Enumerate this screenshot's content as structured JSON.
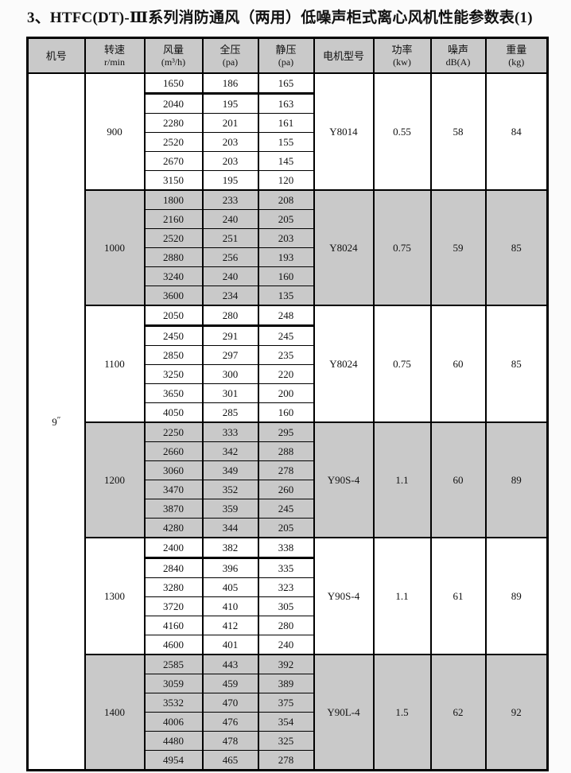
{
  "page": {
    "title": "3、HTFC(DT)-Ⅲ系列消防通风（两用）低噪声柜式离心风机性能参数表(1)"
  },
  "colors": {
    "shade_gray": "#c9c9c9",
    "border": "#000000",
    "background": "#fbfbfb"
  },
  "table": {
    "machine_no": "9″",
    "headers": [
      {
        "line1": "机号",
        "line2": ""
      },
      {
        "line1": "转速",
        "line2": "r/min"
      },
      {
        "line1": "风量",
        "line2": "(m³/h)"
      },
      {
        "line1": "全压",
        "line2": "(pa)"
      },
      {
        "line1": "静压",
        "line2": "(pa)"
      },
      {
        "line1": "电机型号",
        "line2": ""
      },
      {
        "line1": "功率",
        "line2": "(kw)"
      },
      {
        "line1": "噪声",
        "line2": "dB(A)"
      },
      {
        "line1": "重量",
        "line2": "(kg)"
      }
    ],
    "sections": [
      {
        "speed": "900",
        "motor": "Y8014",
        "power": "0.55",
        "noise": "58",
        "weight": "84",
        "shaded": false,
        "divider_after_first_row": true,
        "rows": [
          [
            1650,
            186,
            165
          ],
          [
            2040,
            195,
            163
          ],
          [
            2280,
            201,
            161
          ],
          [
            2520,
            203,
            155
          ],
          [
            2670,
            203,
            145
          ],
          [
            3150,
            195,
            120
          ]
        ]
      },
      {
        "speed": "1000",
        "motor": "Y8024",
        "power": "0.75",
        "noise": "59",
        "weight": "85",
        "shaded": true,
        "divider_after_first_row": false,
        "rows": [
          [
            1800,
            233,
            208
          ],
          [
            2160,
            240,
            205
          ],
          [
            2520,
            251,
            203
          ],
          [
            2880,
            256,
            193
          ],
          [
            3240,
            240,
            160
          ],
          [
            3600,
            234,
            135
          ]
        ]
      },
      {
        "speed": "1100",
        "motor": "Y8024",
        "power": "0.75",
        "noise": "60",
        "weight": "85",
        "shaded": false,
        "divider_after_first_row": true,
        "rows": [
          [
            2050,
            280,
            248
          ],
          [
            2450,
            291,
            245
          ],
          [
            2850,
            297,
            235
          ],
          [
            3250,
            300,
            220
          ],
          [
            3650,
            301,
            200
          ],
          [
            4050,
            285,
            160
          ]
        ]
      },
      {
        "speed": "1200",
        "motor": "Y90S-4",
        "power": "1.1",
        "noise": "60",
        "weight": "89",
        "shaded": true,
        "divider_after_first_row": false,
        "rows": [
          [
            2250,
            333,
            295
          ],
          [
            2660,
            342,
            288
          ],
          [
            3060,
            349,
            278
          ],
          [
            3470,
            352,
            260
          ],
          [
            3870,
            359,
            245
          ],
          [
            4280,
            344,
            205
          ]
        ]
      },
      {
        "speed": "1300",
        "motor": "Y90S-4",
        "power": "1.1",
        "noise": "61",
        "weight": "89",
        "shaded": false,
        "divider_after_first_row": true,
        "rows": [
          [
            2400,
            382,
            338
          ],
          [
            2840,
            396,
            335
          ],
          [
            3280,
            405,
            323
          ],
          [
            3720,
            410,
            305
          ],
          [
            4160,
            412,
            280
          ],
          [
            4600,
            401,
            240
          ]
        ]
      },
      {
        "speed": "1400",
        "motor": "Y90L-4",
        "power": "1.5",
        "noise": "62",
        "weight": "92",
        "shaded": true,
        "divider_after_first_row": false,
        "rows": [
          [
            2585,
            443,
            392
          ],
          [
            3059,
            459,
            389
          ],
          [
            3532,
            470,
            375
          ],
          [
            4006,
            476,
            354
          ],
          [
            4480,
            478,
            325
          ],
          [
            4954,
            465,
            278
          ]
        ]
      }
    ]
  }
}
